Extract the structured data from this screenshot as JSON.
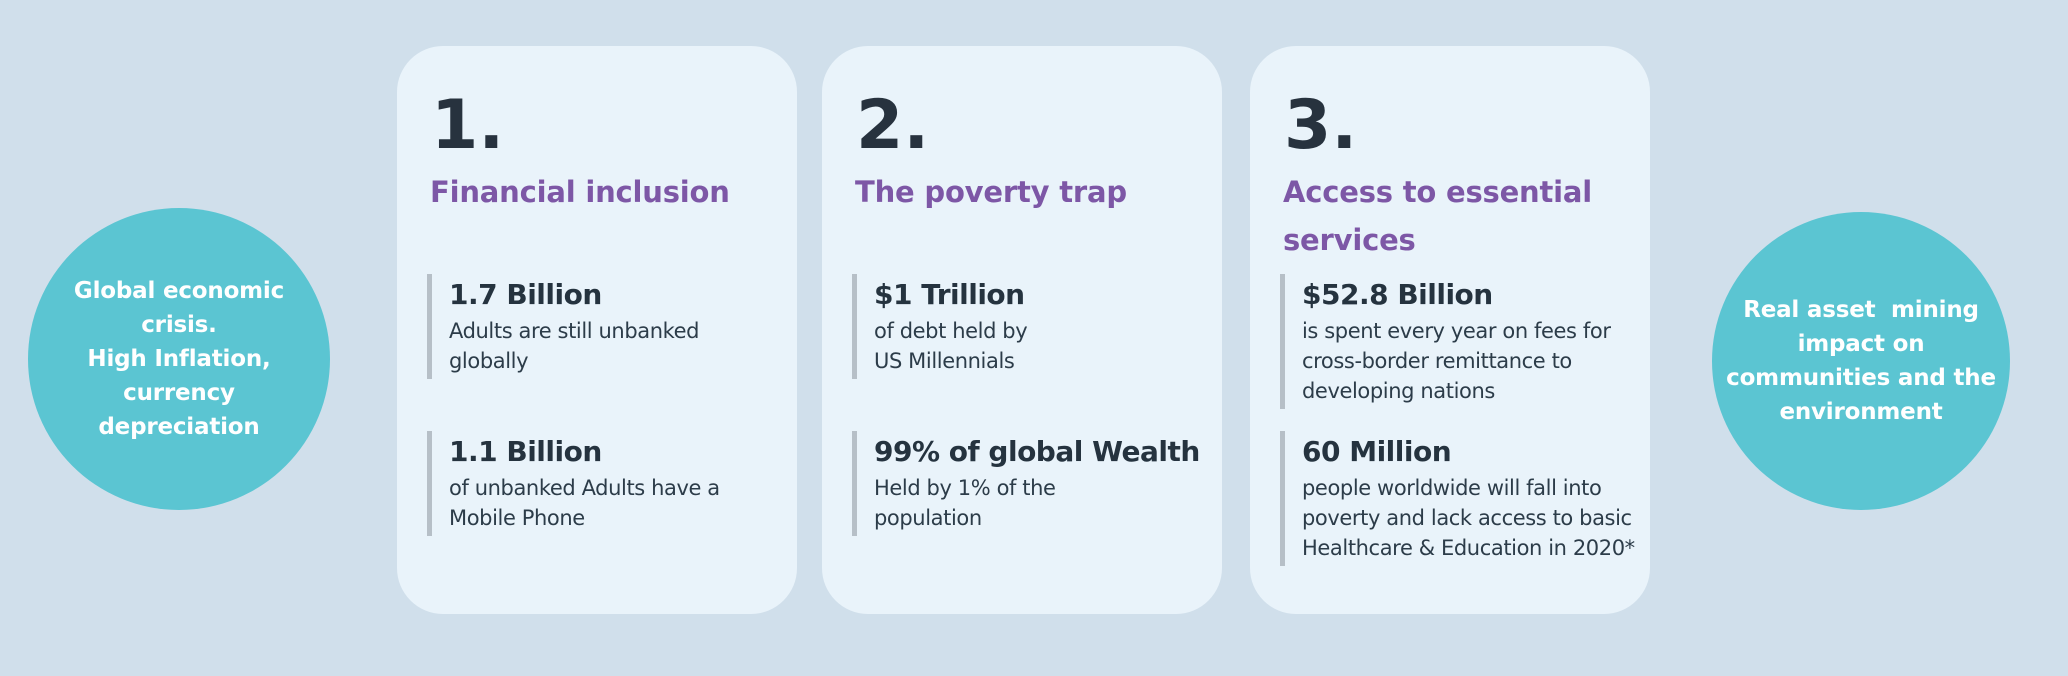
{
  "colors": {
    "background": "#d0dfeb",
    "card_background": "#e9f3fa",
    "circle_teal": "#5bc5d2",
    "title_purple": "#7d57a6",
    "text_navy": "#27323e",
    "stat_bar_gray": "#b6bfc7",
    "circle_text_white": "#ffffff"
  },
  "left_circle": {
    "text": "Global economic\ncrisis.\nHigh Inflation,\ncurrency\ndepreciation"
  },
  "right_circle": {
    "text": "Real asset  mining\nimpact on\ncommunities and the\nenvironment"
  },
  "cards": [
    {
      "number": "1.",
      "title": "Financial inclusion",
      "stats": [
        {
          "value": "1.7 Billion",
          "desc": "Adults are still unbanked\nglobally"
        },
        {
          "value": "1.1 Billion",
          "desc": "of unbanked Adults have a\nMobile Phone"
        }
      ]
    },
    {
      "number": "2.",
      "title": "The poverty trap",
      "stats": [
        {
          "value": "$1 Trillion",
          "desc": "of debt held by\nUS Millennials"
        },
        {
          "value": "99% of global Wealth",
          "desc": "Held by 1% of the\npopulation"
        }
      ]
    },
    {
      "number": "3.",
      "title": "Access to essential\nservices",
      "stats": [
        {
          "value": "$52.8 Billion",
          "desc": "is spent every year on fees for\ncross-border remittance to\ndeveloping nations"
        },
        {
          "value": "60 Million",
          "desc": "people worldwide will fall into\npoverty and lack access to basic\nHealthcare & Education in 2020*"
        }
      ]
    }
  ]
}
